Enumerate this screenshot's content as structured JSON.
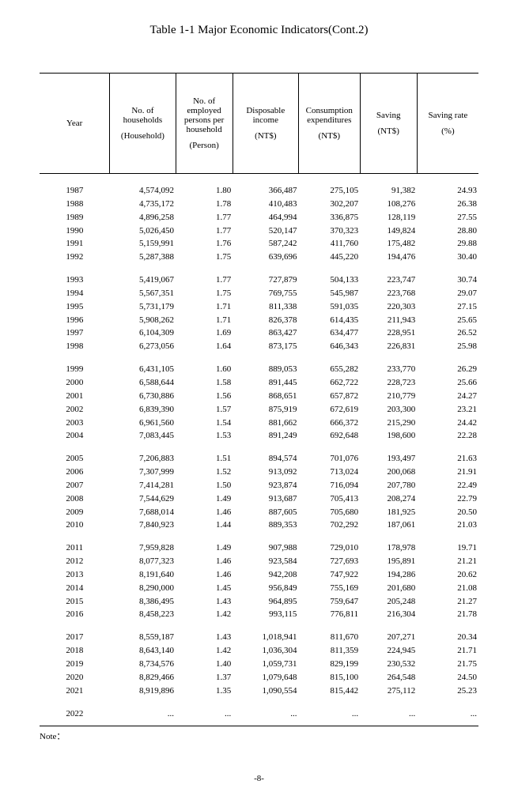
{
  "title": "Table 1-1 Major Economic Indicators(Cont.2)",
  "note_label": "Note：",
  "page_number": "-8-",
  "columns": [
    {
      "line1": "Year",
      "line2": ""
    },
    {
      "line1": "No. of households",
      "line2": "(Household)"
    },
    {
      "line1": "No. of employed persons per household",
      "line2": "(Person)"
    },
    {
      "line1": "Disposable income",
      "line2": "(NT$)"
    },
    {
      "line1": "Consumption expenditures",
      "line2": "(NT$)"
    },
    {
      "line1": "Saving",
      "line2": "(NT$)"
    },
    {
      "line1": "Saving rate",
      "line2": "(%)"
    }
  ],
  "groups": [
    [
      [
        "1987",
        "4,574,092",
        "1.80",
        "366,487",
        "275,105",
        "91,382",
        "24.93"
      ],
      [
        "1988",
        "4,735,172",
        "1.78",
        "410,483",
        "302,207",
        "108,276",
        "26.38"
      ],
      [
        "1989",
        "4,896,258",
        "1.77",
        "464,994",
        "336,875",
        "128,119",
        "27.55"
      ],
      [
        "1990",
        "5,026,450",
        "1.77",
        "520,147",
        "370,323",
        "149,824",
        "28.80"
      ],
      [
        "1991",
        "5,159,991",
        "1.76",
        "587,242",
        "411,760",
        "175,482",
        "29.88"
      ],
      [
        "1992",
        "5,287,388",
        "1.75",
        "639,696",
        "445,220",
        "194,476",
        "30.40"
      ]
    ],
    [
      [
        "1993",
        "5,419,067",
        "1.77",
        "727,879",
        "504,133",
        "223,747",
        "30.74"
      ],
      [
        "1994",
        "5,567,351",
        "1.75",
        "769,755",
        "545,987",
        "223,768",
        "29.07"
      ],
      [
        "1995",
        "5,731,179",
        "1.71",
        "811,338",
        "591,035",
        "220,303",
        "27.15"
      ],
      [
        "1996",
        "5,908,262",
        "1.71",
        "826,378",
        "614,435",
        "211,943",
        "25.65"
      ],
      [
        "1997",
        "6,104,309",
        "1.69",
        "863,427",
        "634,477",
        "228,951",
        "26.52"
      ],
      [
        "1998",
        "6,273,056",
        "1.64",
        "873,175",
        "646,343",
        "226,831",
        "25.98"
      ]
    ],
    [
      [
        "1999",
        "6,431,105",
        "1.60",
        "889,053",
        "655,282",
        "233,770",
        "26.29"
      ],
      [
        "2000",
        "6,588,644",
        "1.58",
        "891,445",
        "662,722",
        "228,723",
        "25.66"
      ],
      [
        "2001",
        "6,730,886",
        "1.56",
        "868,651",
        "657,872",
        "210,779",
        "24.27"
      ],
      [
        "2002",
        "6,839,390",
        "1.57",
        "875,919",
        "672,619",
        "203,300",
        "23.21"
      ],
      [
        "2003",
        "6,961,560",
        "1.54",
        "881,662",
        "666,372",
        "215,290",
        "24.42"
      ],
      [
        "2004",
        "7,083,445",
        "1.53",
        "891,249",
        "692,648",
        "198,600",
        "22.28"
      ]
    ],
    [
      [
        "2005",
        "7,206,883",
        "1.51",
        "894,574",
        "701,076",
        "193,497",
        "21.63"
      ],
      [
        "2006",
        "7,307,999",
        "1.52",
        "913,092",
        "713,024",
        "200,068",
        "21.91"
      ],
      [
        "2007",
        "7,414,281",
        "1.50",
        "923,874",
        "716,094",
        "207,780",
        "22.49"
      ],
      [
        "2008",
        "7,544,629",
        "1.49",
        "913,687",
        "705,413",
        "208,274",
        "22.79"
      ],
      [
        "2009",
        "7,688,014",
        "1.46",
        "887,605",
        "705,680",
        "181,925",
        "20.50"
      ],
      [
        "2010",
        "7,840,923",
        "1.44",
        "889,353",
        "702,292",
        "187,061",
        "21.03"
      ]
    ],
    [
      [
        "2011",
        "7,959,828",
        "1.49",
        "907,988",
        "729,010",
        "178,978",
        "19.71"
      ],
      [
        "2012",
        "8,077,323",
        "1.46",
        "923,584",
        "727,693",
        "195,891",
        "21.21"
      ],
      [
        "2013",
        "8,191,640",
        "1.46",
        "942,208",
        "747,922",
        "194,286",
        "20.62"
      ],
      [
        "2014",
        "8,290,000",
        "1.45",
        "956,849",
        "755,169",
        "201,680",
        "21.08"
      ],
      [
        "2015",
        "8,386,495",
        "1.43",
        "964,895",
        "759,647",
        "205,248",
        "21.27"
      ],
      [
        "2016",
        "8,458,223",
        "1.42",
        "993,115",
        "776,811",
        "216,304",
        "21.78"
      ]
    ],
    [
      [
        "2017",
        "8,559,187",
        "1.43",
        "1,018,941",
        "811,670",
        "207,271",
        "20.34"
      ],
      [
        "2018",
        "8,643,140",
        "1.42",
        "1,036,304",
        "811,359",
        "224,945",
        "21.71"
      ],
      [
        "2019",
        "8,734,576",
        "1.40",
        "1,059,731",
        "829,199",
        "230,532",
        "21.75"
      ],
      [
        "2020",
        "8,829,466",
        "1.37",
        "1,079,648",
        "815,100",
        "264,548",
        "24.50"
      ],
      [
        "2021",
        "8,919,896",
        "1.35",
        "1,090,554",
        "815,442",
        "275,112",
        "25.23"
      ]
    ],
    [
      [
        "2022",
        "...",
        "...",
        "...",
        "...",
        "...",
        "..."
      ]
    ]
  ]
}
